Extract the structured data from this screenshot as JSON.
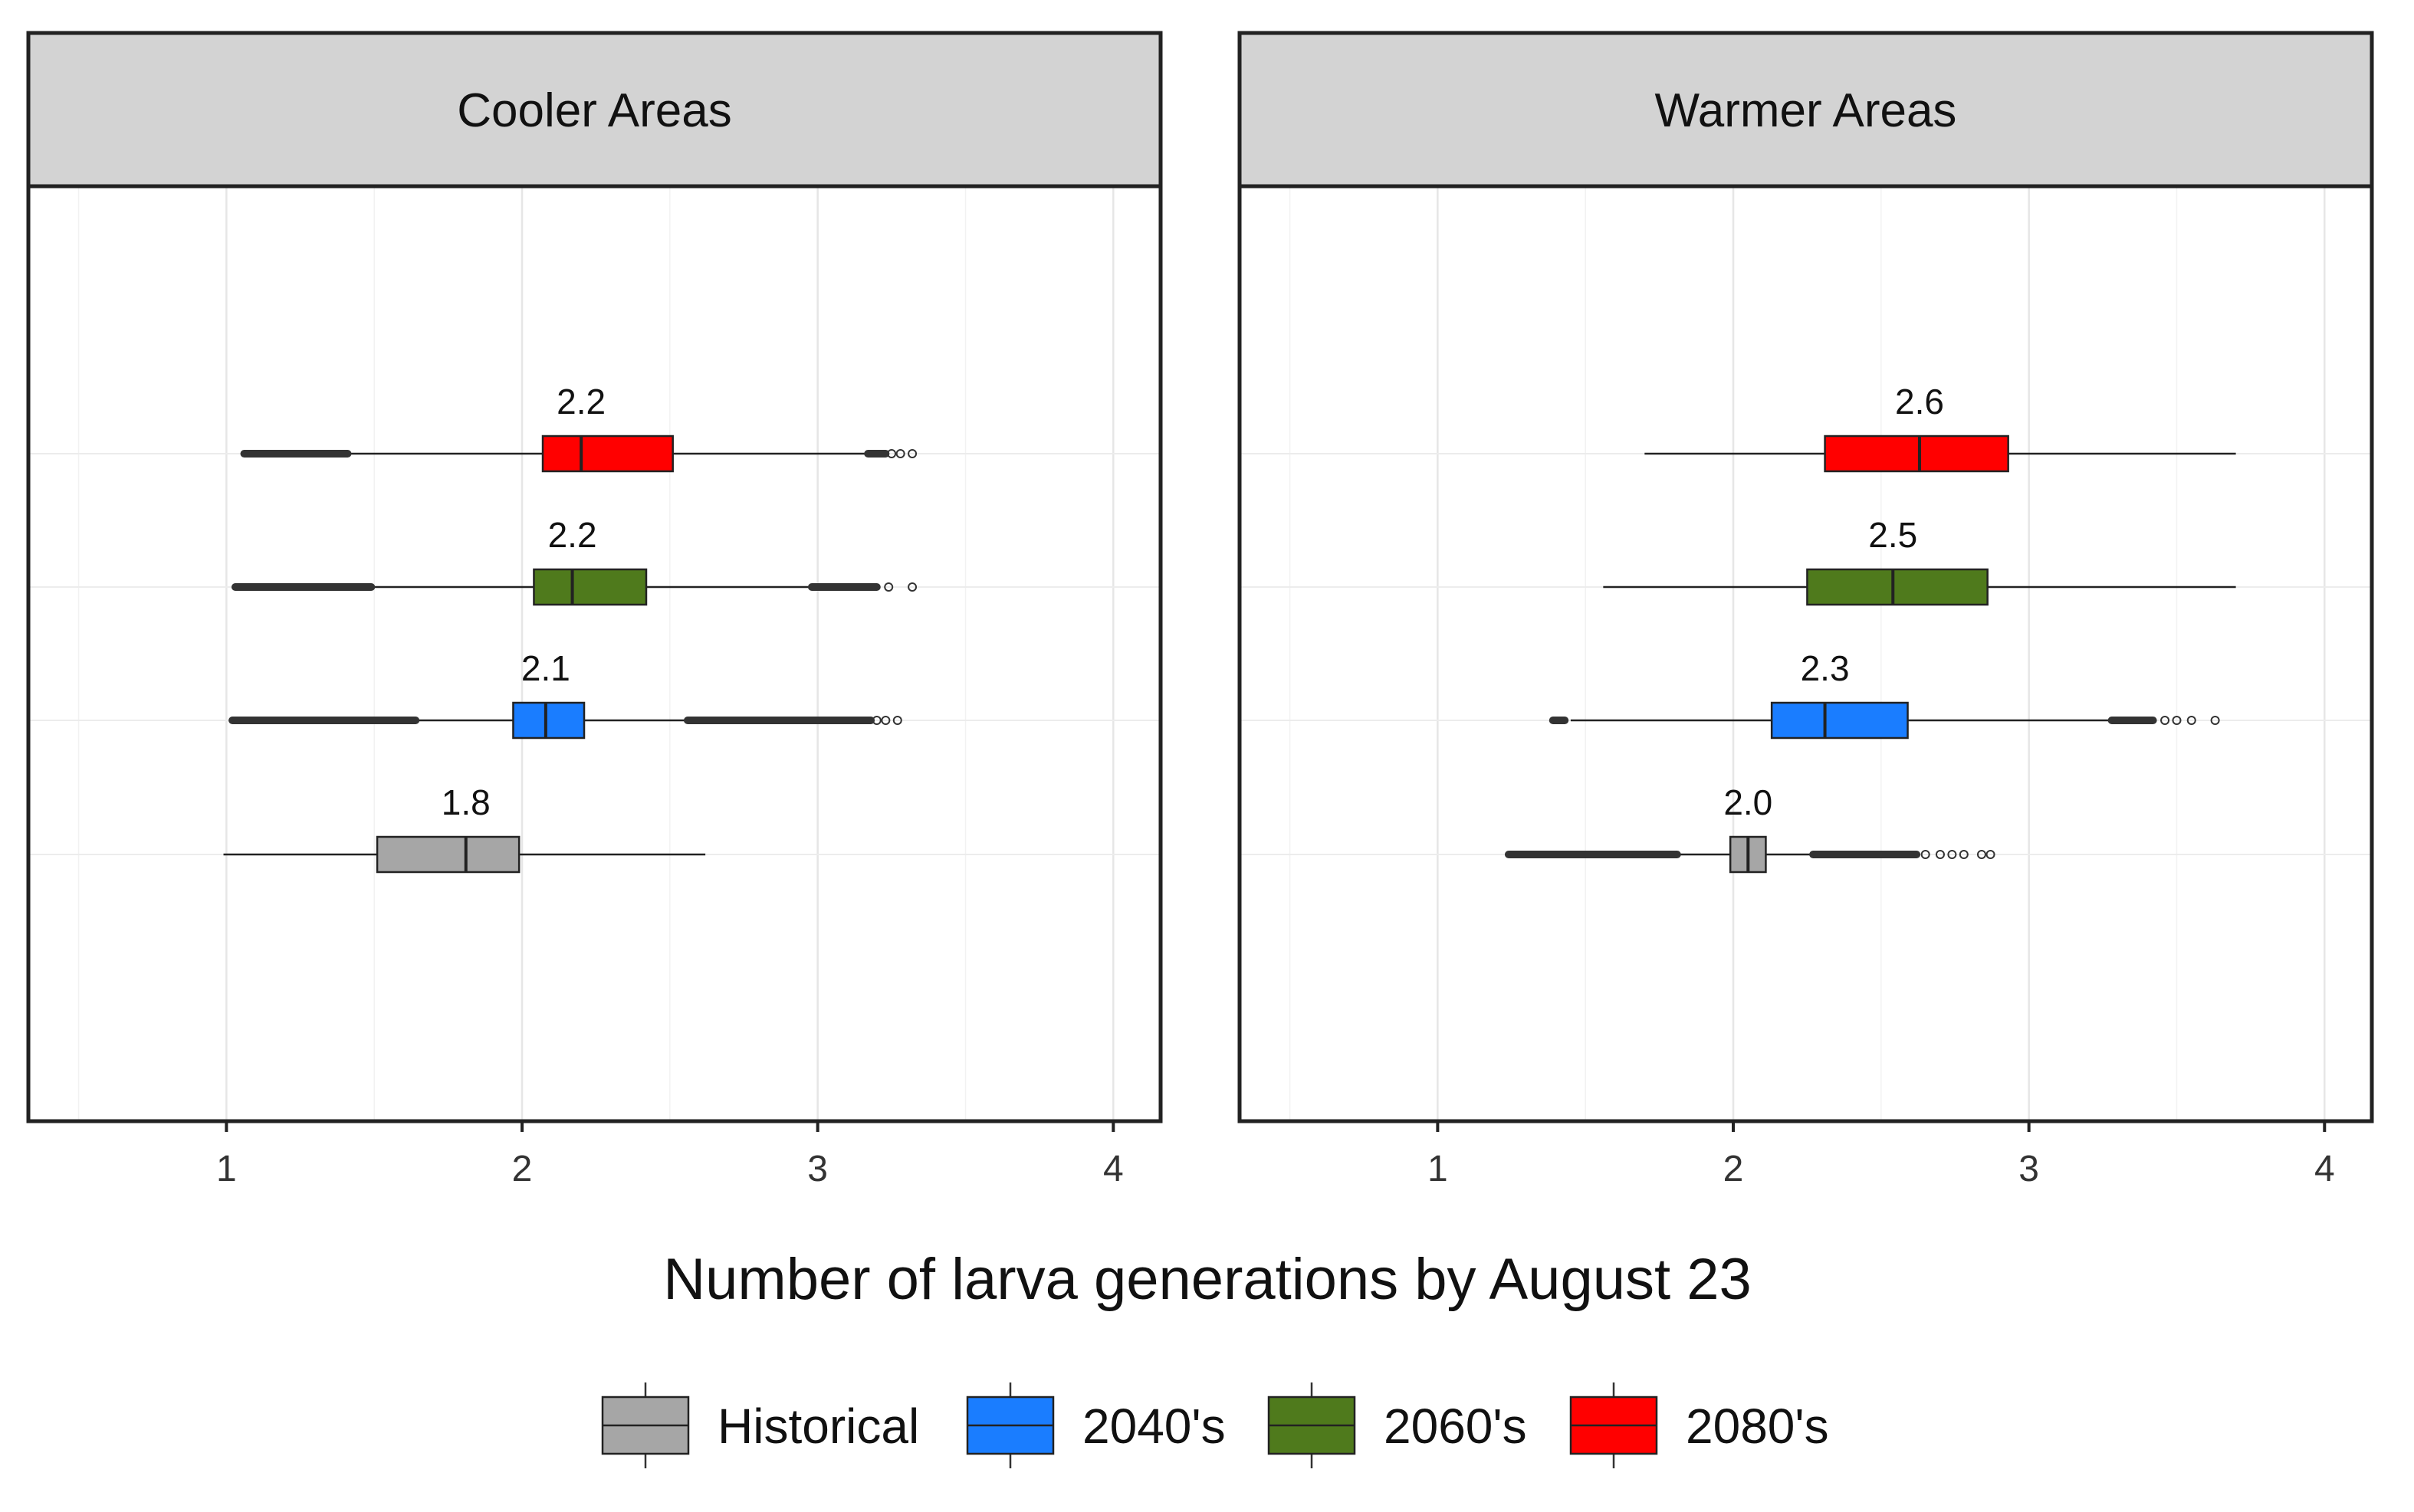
{
  "chart_data": {
    "type": "boxplot",
    "orientation": "horizontal",
    "xlabel": "Number of larva generations by August 23",
    "xlim": [
      0.33,
      4.16
    ],
    "xticks": [
      1,
      2,
      3,
      4
    ],
    "xtick_labels": [
      "1",
      "2",
      "3",
      "4"
    ],
    "legend_position": "bottom",
    "grid": true,
    "series": [
      {
        "name": "Historical",
        "color": "#a6a6a6"
      },
      {
        "name": "2040's",
        "color": "#1a7dff"
      },
      {
        "name": "2060's",
        "color": "#4f7a1c"
      },
      {
        "name": "2080's",
        "color": "#ff0000"
      }
    ],
    "panels": [
      {
        "title": "Cooler Areas",
        "boxes": [
          {
            "series": "Historical",
            "whisker_low": 0.99,
            "q1": 1.51,
            "median": 1.81,
            "q3": 1.99,
            "whisker_high": 2.62,
            "median_label": "1.8",
            "outliers_low_range": null,
            "outliers_high_range": null,
            "outliers_high_points": []
          },
          {
            "series": "2040's",
            "whisker_low": 1.64,
            "q1": 1.97,
            "median": 2.08,
            "q3": 2.21,
            "whisker_high": 2.56,
            "median_label": "2.1",
            "outliers_low_range": [
              1.02,
              1.64
            ],
            "outliers_high_range": [
              2.56,
              3.18
            ],
            "outliers_high_points": [
              3.2,
              3.23,
              3.27
            ]
          },
          {
            "series": "2060's",
            "whisker_low": 1.49,
            "q1": 2.04,
            "median": 2.17,
            "q3": 2.42,
            "whisker_high": 2.98,
            "median_label": "2.2",
            "outliers_low_range": [
              1.03,
              1.49
            ],
            "outliers_high_range": [
              2.98,
              3.2
            ],
            "outliers_high_points": [
              3.24,
              3.32
            ]
          },
          {
            "series": "2080's",
            "whisker_low": 1.41,
            "q1": 2.07,
            "median": 2.2,
            "q3": 2.51,
            "whisker_high": 3.17,
            "median_label": "2.2",
            "outliers_low_range": [
              1.06,
              1.41
            ],
            "outliers_high_range": [
              3.17,
              3.23
            ],
            "outliers_high_points": [
              3.25,
              3.28,
              3.32
            ]
          }
        ]
      },
      {
        "title": "Warmer Areas",
        "boxes": [
          {
            "series": "Historical",
            "whisker_low": 1.81,
            "q1": 1.99,
            "median": 2.05,
            "q3": 2.11,
            "whisker_high": 2.27,
            "median_label": "2.0",
            "outliers_low_range": [
              1.24,
              1.81
            ],
            "outliers_high_range": [
              2.27,
              2.62
            ],
            "outliers_high_points": [
              2.65,
              2.7,
              2.74,
              2.78,
              2.84,
              2.87
            ]
          },
          {
            "series": "2040's",
            "whisker_low": 1.45,
            "q1": 2.13,
            "median": 2.31,
            "q3": 2.59,
            "whisker_high": 3.28,
            "median_label": "2.3",
            "outliers_low_range": [
              1.39,
              1.43
            ],
            "outliers_high_range": [
              3.28,
              3.42
            ],
            "outliers_high_points": [
              3.46,
              3.5,
              3.55,
              3.63
            ]
          },
          {
            "series": "2060's",
            "whisker_low": 1.56,
            "q1": 2.25,
            "median": 2.54,
            "q3": 2.86,
            "whisker_high": 3.7,
            "median_label": "2.5",
            "outliers_low_range": null,
            "outliers_high_range": null,
            "outliers_high_points": []
          },
          {
            "series": "2080's",
            "whisker_low": 1.7,
            "q1": 2.31,
            "median": 2.63,
            "q3": 2.93,
            "whisker_high": 3.7,
            "median_label": "2.6",
            "outliers_low_range": null,
            "outliers_high_range": null,
            "outliers_high_points": []
          }
        ]
      }
    ]
  }
}
